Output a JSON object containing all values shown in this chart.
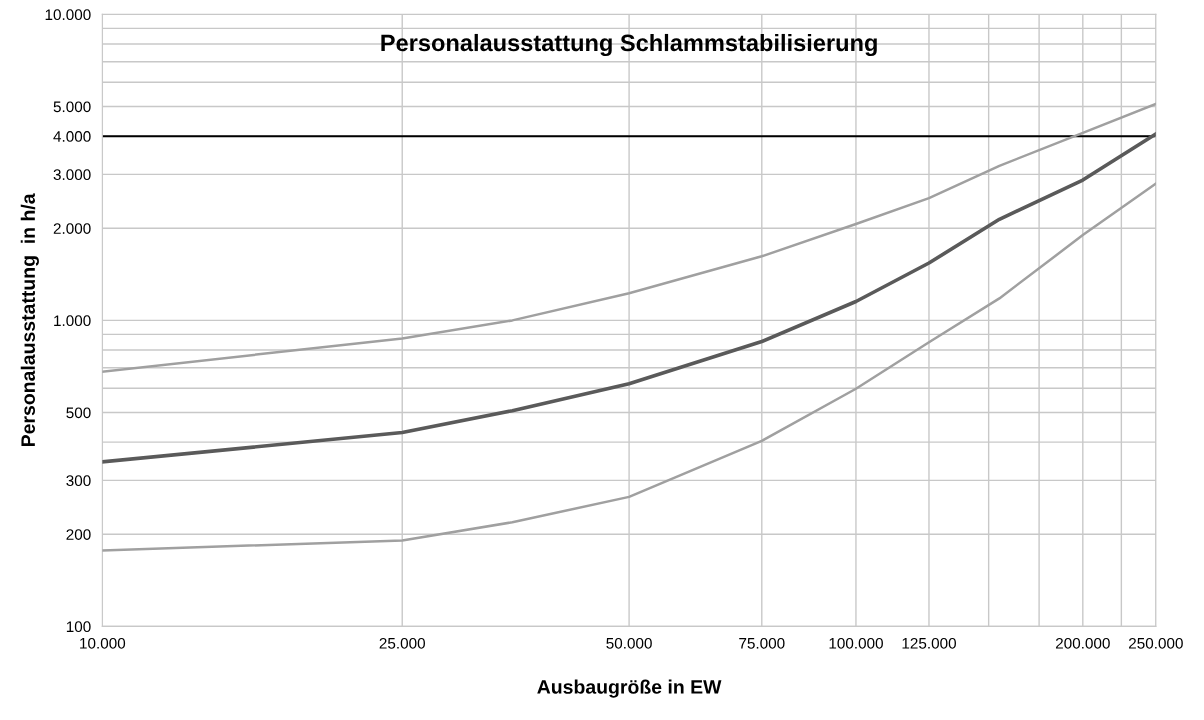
{
  "chart_data": {
    "type": "line",
    "title": "Personalausstattung Schlammstabilisierung",
    "xlabel": "Ausbaugröße in EW",
    "ylabel": "Personalausstattung  in h/a",
    "log": "xy",
    "grid": true,
    "legend": false,
    "marker": "none",
    "line_style": "solid",
    "x": [
      10000,
      25000,
      35000,
      50000,
      75000,
      100000,
      125000,
      155000,
      200000,
      250000
    ],
    "series": [
      {
        "color": "#a0a0a0",
        "values": [
          680,
          873,
          1000,
          1227,
          1620,
          2065,
          2510,
          3200,
          4100,
          5100
        ]
      },
      {
        "color": "#5a5a5a",
        "values": [
          345,
          430,
          507,
          621,
          853,
          1153,
          1540,
          2140,
          2875,
          4070
        ]
      },
      {
        "color": "#a0a0a0",
        "values": [
          177,
          191,
          219,
          265,
          404,
          598,
          848,
          1180,
          1900,
          2800
        ]
      }
    ],
    "xlim": [
      10000,
      250000
    ],
    "ylim": [
      100,
      10000
    ],
    "xticks": [
      {
        "value": 10000,
        "label": "10.000"
      },
      {
        "value": 25000,
        "label": "25.000"
      },
      {
        "value": 50000,
        "label": "50.000"
      },
      {
        "value": 75000,
        "label": "75.000"
      },
      {
        "value": 100000,
        "label": "100.000"
      },
      {
        "value": 125000,
        "label": "125.000"
      },
      {
        "value": 150000,
        "label": null
      },
      {
        "value": 175000,
        "label": null
      },
      {
        "value": 200000,
        "label": "200.000"
      },
      {
        "value": 225000,
        "label": null
      },
      {
        "value": 250000,
        "label": "250.000"
      }
    ],
    "yticks": [
      {
        "value": 100,
        "label": "100"
      },
      {
        "value": 200,
        "label": "200"
      },
      {
        "value": 300,
        "label": "300"
      },
      {
        "value": 400,
        "label": null
      },
      {
        "value": 500,
        "label": "500"
      },
      {
        "value": 600,
        "label": null
      },
      {
        "value": 700,
        "label": null
      },
      {
        "value": 800,
        "label": null
      },
      {
        "value": 900,
        "label": null
      },
      {
        "value": 1000,
        "label": "1.000"
      },
      {
        "value": 2000,
        "label": "2.000"
      },
      {
        "value": 3000,
        "label": "3.000"
      },
      {
        "value": 4000,
        "label": "4.000"
      },
      {
        "value": 5000,
        "label": "5.000"
      },
      {
        "value": 6000,
        "label": null
      },
      {
        "value": 7000,
        "label": null
      },
      {
        "value": 8000,
        "label": null
      },
      {
        "value": 9000,
        "label": null
      },
      {
        "value": 10000,
        "label": "10.000"
      }
    ],
    "ref_lines": [
      {
        "axis": "y",
        "value": 4000,
        "color": "#000000",
        "line_style": "solid"
      }
    ]
  }
}
